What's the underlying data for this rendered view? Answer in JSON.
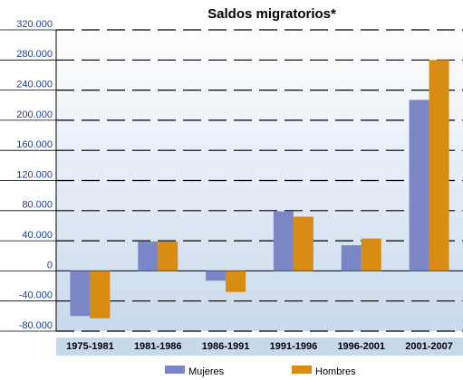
{
  "chart_data": {
    "type": "bar",
    "title": "Saldos migratorios*",
    "categories": [
      "1975-1981",
      "1981-1986",
      "1986-1991",
      "1991-1996",
      "1996-2001",
      "2001-2007"
    ],
    "series": [
      {
        "name": "Mujeres",
        "color": "#7b86c6",
        "values": [
          -60000,
          39000,
          -13000,
          79000,
          34000,
          227000
        ]
      },
      {
        "name": "Hombres",
        "color": "#d98c14",
        "values": [
          -63000,
          39000,
          -28000,
          72000,
          43000,
          280000
        ]
      }
    ],
    "ylim": [
      -80000,
      320000
    ],
    "yticks": [
      {
        "value": -80000,
        "label": "-80.000"
      },
      {
        "value": -40000,
        "label": "-40.000"
      },
      0,
      {
        "value": 40000,
        "label": "40.000"
      },
      {
        "value": 80000,
        "label": "80.000"
      },
      {
        "value": 120000,
        "label": "120.000"
      },
      {
        "value": 160000,
        "label": "160.000"
      },
      {
        "value": 200000,
        "label": "200.000"
      },
      {
        "value": 240000,
        "label": "240.000"
      },
      {
        "value": 280000,
        "label": "280.000"
      },
      {
        "value": 320000,
        "label": "320.000"
      }
    ],
    "grid": true
  }
}
